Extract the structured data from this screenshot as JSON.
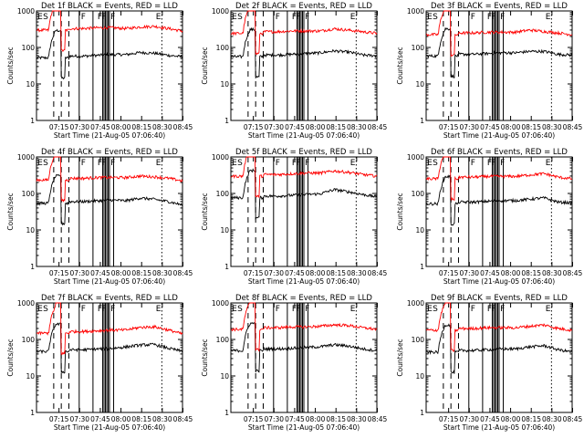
{
  "figure": {
    "xlabel_prefix": "Start Time",
    "start_time": "(21-Aug-05 07:06:40)",
    "ylabel": "Counts/sec",
    "xticks": [
      "07:15",
      "07:30",
      "07:45",
      "08:00",
      "08:15",
      "08:30",
      "08:45"
    ],
    "yticks": [
      "1",
      "10",
      "100",
      "1000"
    ],
    "colors": {
      "events": "#000000",
      "lld": "#ff0000",
      "axes": "#000000"
    },
    "marker_labels": {
      "early": [
        "E",
        "S"
      ],
      "front": "F",
      "end": "E"
    }
  },
  "chart_data": [
    {
      "type": "line",
      "title": "Det 1f BLACK = Events, RED = LLD",
      "xlim_min": [
        -8,
        98
      ],
      "ylim": [
        1,
        1000
      ],
      "yscale": "log",
      "series": [
        {
          "name": "Events",
          "color": "#000000",
          "level": 58,
          "trend": [
            1,
            1,
            1.05,
            1.1,
            1.1,
            1.25,
            1.2,
            1.05,
            0.95
          ]
        },
        {
          "name": "LLD",
          "color": "#ff0000",
          "level": 330,
          "trend": [
            1,
            1,
            1.05,
            1.05,
            1.0,
            1.1,
            1.15,
            1.0,
            0.85
          ]
        }
      ],
      "markers_min": [
        23,
        33,
        40,
        41,
        42,
        43,
        44,
        45,
        48,
        83
      ]
    },
    {
      "type": "line",
      "title": "Det 2f BLACK = Events, RED = LLD",
      "xlim_min": [
        -8,
        98
      ],
      "ylim": [
        1,
        1000
      ],
      "yscale": "log",
      "series": [
        {
          "name": "Events",
          "color": "#000000",
          "level": 62,
          "trend": [
            1,
            1,
            1.05,
            1.1,
            1.15,
            1.3,
            1.2,
            1.0,
            0.95
          ]
        },
        {
          "name": "LLD",
          "color": "#ff0000",
          "level": 270,
          "trend": [
            1,
            1,
            1.05,
            1.05,
            1.05,
            1.2,
            1.1,
            1.0,
            0.9
          ]
        }
      ],
      "markers_min": [
        23,
        33,
        40,
        41,
        42,
        43,
        44,
        45,
        48,
        83
      ]
    },
    {
      "type": "line",
      "title": "Det 3f BLACK = Events, RED = LLD",
      "xlim_min": [
        -8,
        98
      ],
      "ylim": [
        1,
        1000
      ],
      "yscale": "log",
      "series": [
        {
          "name": "Events",
          "color": "#000000",
          "level": 65,
          "trend": [
            1,
            1,
            1.05,
            1.1,
            1.1,
            1.2,
            1.2,
            1.0,
            0.95
          ]
        },
        {
          "name": "LLD",
          "color": "#ff0000",
          "level": 250,
          "trend": [
            1,
            1,
            1.05,
            1.05,
            1.05,
            1.2,
            1.1,
            1.0,
            0.9
          ]
        }
      ],
      "markers_min": [
        23,
        33,
        40,
        41,
        42,
        43,
        44,
        45,
        48,
        83
      ]
    },
    {
      "type": "line",
      "title": "Det 4f BLACK = Events, RED = LLD",
      "xlim_min": [
        -8,
        98
      ],
      "ylim": [
        1,
        1000
      ],
      "yscale": "log",
      "series": [
        {
          "name": "Events",
          "color": "#000000",
          "level": 60,
          "trend": [
            1,
            1,
            1.05,
            1.1,
            1.05,
            1.25,
            1.15,
            1.0,
            0.8
          ]
        },
        {
          "name": "LLD",
          "color": "#ff0000",
          "level": 260,
          "trend": [
            1,
            1,
            1.05,
            1.05,
            1.05,
            1.15,
            1.1,
            1.0,
            0.85
          ]
        }
      ],
      "markers_min": [
        23,
        33,
        40,
        41,
        42,
        43,
        44,
        45,
        48,
        83
      ]
    },
    {
      "type": "line",
      "title": "Det 5f BLACK = Events, RED = LLD",
      "xlim_min": [
        -8,
        98
      ],
      "ylim": [
        1,
        1000
      ],
      "yscale": "log",
      "series": [
        {
          "name": "Events",
          "color": "#000000",
          "level": 85,
          "trend": [
            1,
            1,
            1.05,
            1.1,
            1.15,
            1.5,
            1.3,
            1.1,
            0.95
          ]
        },
        {
          "name": "LLD",
          "color": "#ff0000",
          "level": 330,
          "trend": [
            1,
            1,
            1.05,
            1.1,
            1.1,
            1.25,
            1.15,
            1.0,
            0.9
          ]
        }
      ],
      "markers_min": [
        23,
        33,
        40,
        41,
        42,
        43,
        44,
        45,
        48,
        83
      ]
    },
    {
      "type": "line",
      "title": "Det 6f BLACK = Events, RED = LLD",
      "xlim_min": [
        -8,
        98
      ],
      "ylim": [
        1,
        1000
      ],
      "yscale": "log",
      "series": [
        {
          "name": "Events",
          "color": "#000000",
          "level": 58,
          "trend": [
            1,
            1,
            1.05,
            1.1,
            1.1,
            1.2,
            1.3,
            1.0,
            0.95
          ]
        },
        {
          "name": "LLD",
          "color": "#ff0000",
          "level": 280,
          "trend": [
            1,
            1,
            1.05,
            1.05,
            1.05,
            1.15,
            1.25,
            1.0,
            0.9
          ]
        }
      ],
      "markers_min": [
        23,
        33,
        40,
        41,
        42,
        43,
        44,
        45,
        48,
        83
      ]
    },
    {
      "type": "line",
      "title": "Det 7f BLACK = Events, RED = LLD",
      "xlim_min": [
        -8,
        98
      ],
      "ylim": [
        1,
        1000
      ],
      "yscale": "log",
      "series": [
        {
          "name": "Events",
          "color": "#000000",
          "level": 52,
          "trend": [
            1,
            1,
            1.05,
            1.1,
            1.2,
            1.35,
            1.4,
            1.1,
            0.9
          ]
        },
        {
          "name": "LLD",
          "color": "#ff0000",
          "level": 165,
          "trend": [
            1,
            1,
            1.05,
            1.1,
            1.1,
            1.3,
            1.35,
            1.1,
            0.85
          ]
        }
      ],
      "markers_min": [
        23,
        33,
        40,
        41,
        42,
        43,
        44,
        45,
        48,
        83
      ]
    },
    {
      "type": "line",
      "title": "Det 8f BLACK = Events, RED = LLD",
      "xlim_min": [
        -8,
        98
      ],
      "ylim": [
        1,
        1000
      ],
      "yscale": "log",
      "series": [
        {
          "name": "Events",
          "color": "#000000",
          "level": 55,
          "trend": [
            1,
            1,
            1.05,
            1.1,
            1.15,
            1.3,
            1.2,
            1.0,
            0.9
          ]
        },
        {
          "name": "LLD",
          "color": "#ff0000",
          "level": 210,
          "trend": [
            1,
            1,
            1.05,
            1.05,
            1.1,
            1.2,
            1.15,
            1.0,
            0.9
          ]
        }
      ],
      "markers_min": [
        23,
        33,
        40,
        41,
        42,
        43,
        44,
        45,
        48,
        83
      ]
    },
    {
      "type": "line",
      "title": "Det 9f BLACK = Events, RED = LLD",
      "xlim_min": [
        -8,
        98
      ],
      "ylim": [
        1,
        1000
      ],
      "yscale": "log",
      "series": [
        {
          "name": "Events",
          "color": "#000000",
          "level": 50,
          "trend": [
            1,
            1,
            1.05,
            1.1,
            1.1,
            1.25,
            1.35,
            1.05,
            0.9
          ]
        },
        {
          "name": "LLD",
          "color": "#ff0000",
          "level": 200,
          "trend": [
            1,
            1,
            1.05,
            1.05,
            1.05,
            1.15,
            1.25,
            1.0,
            0.9
          ]
        }
      ],
      "markers_min": [
        23,
        33,
        40,
        41,
        42,
        43,
        44,
        45,
        48,
        83
      ]
    }
  ]
}
